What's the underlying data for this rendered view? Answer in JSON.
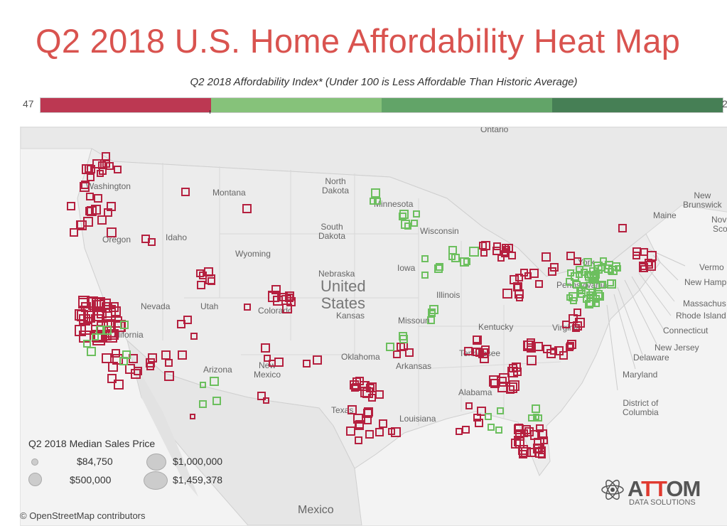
{
  "title": "Q2 2018 U.S. Home Affordability Heat Map",
  "scale": {
    "caption": "Q2 2018 Affordability Index* (Under 100 is Less Affordable Than Historic Average)",
    "min_label": "47",
    "max_label": "2",
    "colors": [
      "#bc3852",
      "#86c27a",
      "#62a468",
      "#467f55"
    ]
  },
  "map": {
    "labels": {
      "ontario": "Ontario",
      "washington": "Washington",
      "montana": "Montana",
      "north_dakota": "North\nDakota",
      "minnesota": "Minnesota",
      "south_dakota": "South\nDakota",
      "oregon": "Oregon",
      "idaho": "Idaho",
      "wyoming": "Wyoming",
      "wisconsin": "Wisconsin",
      "nebraska": "Nebraska",
      "iowa": "Iowa",
      "united_states": "United\nStates",
      "nevada": "Nevada",
      "utah": "Utah",
      "colorado": "Colorado",
      "kansas": "Kansas",
      "missouri": "Missouri",
      "illinois": "Illinois",
      "kentucky": "Kentucky",
      "california": "California",
      "arizona": "Arizona",
      "new_mexico": "New\nMexico",
      "oklahoma": "Oklahoma",
      "arkansas": "Arkansas",
      "tennessee": "Tennessee",
      "alabama": "Alabama",
      "texas": "Texas",
      "louisiana": "Louisiana",
      "virginia": "Virginia",
      "pennsylvania": "Pennsylvania",
      "york": "York",
      "mexico": "Mexico",
      "maine": "Maine",
      "new_brunswick": "New\nBrunswick",
      "nova_scotia": "Nova\nScot",
      "vermont": "Vermo",
      "new_hampshire": "New Hamp",
      "massachusetts": "Massachus",
      "rhode_island": "Rhode Island",
      "connecticut": "Connecticut",
      "new_jersey": "New Jersey",
      "delaware": "Delaware",
      "maryland": "Maryland",
      "dc": "District of\nColumbia"
    },
    "marker_colors": {
      "less_affordable": "#b5203f",
      "more_affordable": "#6cbf5e"
    }
  },
  "legend": {
    "title": "Q2 2018 Median Sales Price",
    "items": [
      "$84,750",
      "$500,000",
      "$1,000,000",
      "$1,459,378"
    ]
  },
  "attribution": "© OpenStreetMap contributors",
  "logo": {
    "name": "ATTOM",
    "tagline": "DATA SOLUTIONS"
  }
}
